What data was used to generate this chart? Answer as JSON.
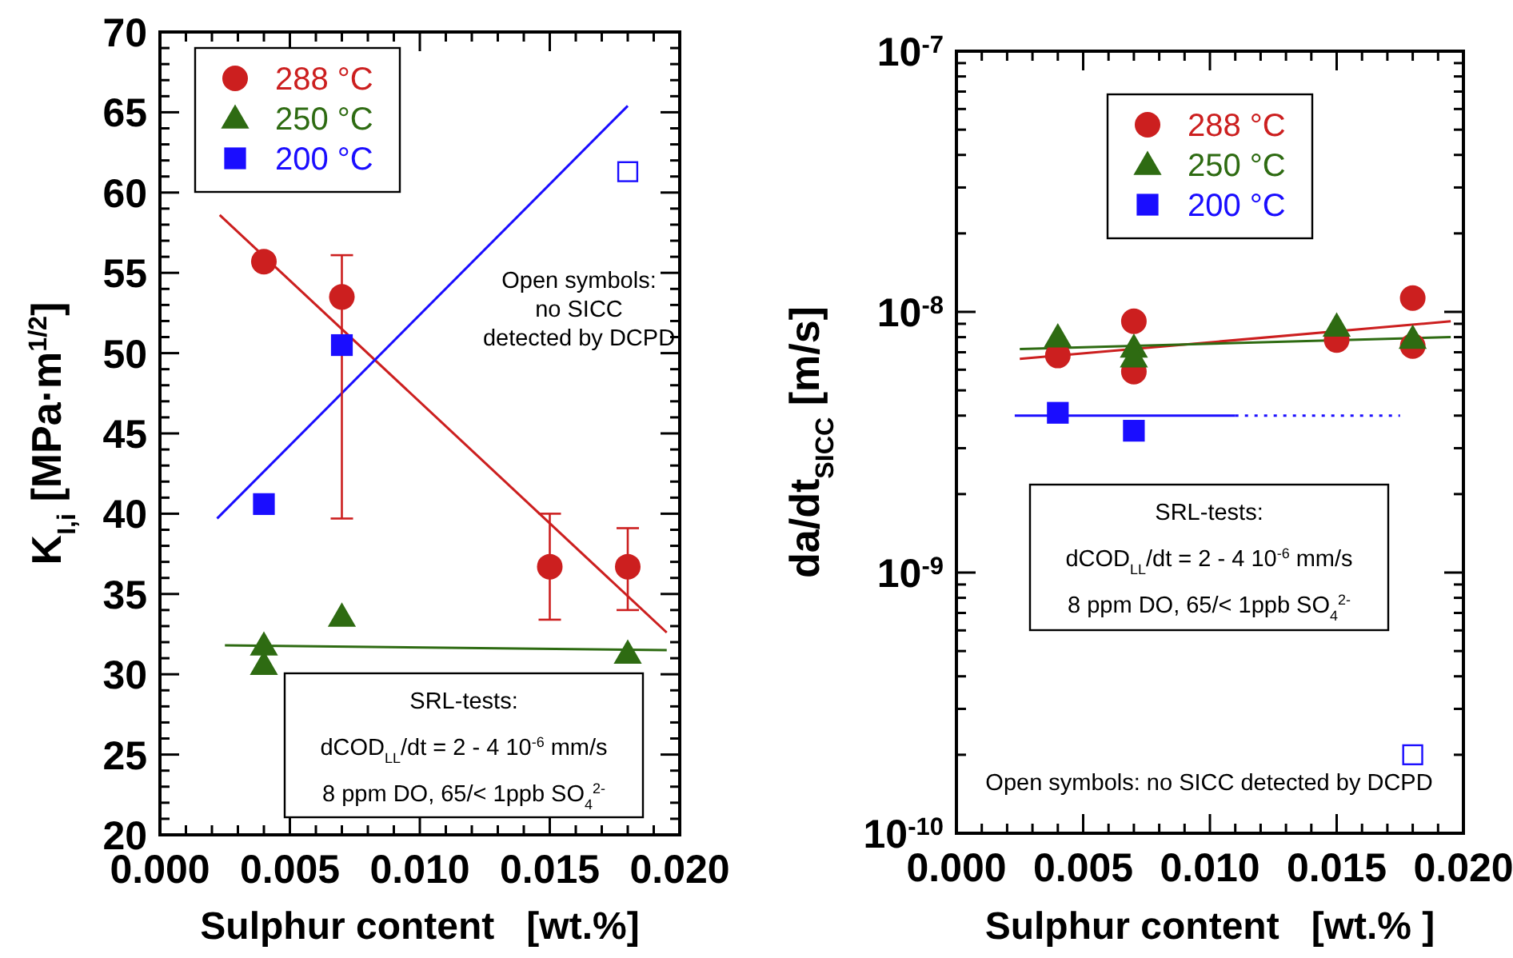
{
  "chart_data": [
    {
      "type": "scatter",
      "xlabel": "Sulphur content   [wt.%]",
      "ylabel": "K$_{I,i}$ [MPa·m$^{1/2}$]",
      "xlim": [
        0,
        0.02
      ],
      "ylim": [
        20,
        70
      ],
      "xticks": [
        {
          "value": 0,
          "label": "0.000"
        },
        {
          "value": 0.005,
          "label": "0.005"
        },
        {
          "value": 0.01,
          "label": "0.010"
        },
        {
          "value": 0.015,
          "label": "0.015"
        },
        {
          "value": 0.02,
          "label": "0.020"
        }
      ],
      "yticks": [
        20,
        25,
        30,
        35,
        40,
        45,
        50,
        55,
        60,
        65,
        70
      ],
      "legend": "top left",
      "grid": false,
      "annotations": [
        "Open symbols:\nno SICC\ndetected by DCPD",
        "SRL-tests:\ndCOD$_{LL}$/dt = 2 - 4 10$^{-6}$ mm/s\n8 ppm DO, 65/< 1ppb SO$_{4}$$^{2-}$"
      ],
      "series": [
        {
          "name": "288 °C",
          "marker": "circle",
          "color": "#cc1f1f",
          "x": [
            0.004,
            0.007,
            0.015,
            0.018
          ],
          "values": [
            55.7,
            53.5,
            36.7,
            36.7
          ],
          "errors": [
            null,
            [
              39.7,
              56.1
            ],
            [
              33.4,
              40.0
            ],
            [
              34.0,
              39.1
            ]
          ]
        },
        {
          "name": "250 °C",
          "marker": "triangle",
          "color": "#2e6b12",
          "x": [
            0.004,
            0.004,
            0.007,
            0.018
          ],
          "values": [
            31.8,
            30.6,
            33.6,
            31.3
          ]
        },
        {
          "name": "200 °C",
          "type": "scatter",
          "marker": "square",
          "color": "#1a0dff",
          "x": [
            0.004,
            0.007
          ],
          "values": [
            40.6,
            50.5
          ]
        },
        {
          "type": "scatter",
          "marker": "square",
          "color": "#1a0dff",
          "x": [
            0.018
          ],
          "values": [
            61.3
          ]
        },
        {
          "type": "line",
          "color": "#cc1f1f",
          "x": [
            0.0023,
            0.0195
          ],
          "values": [
            58.6,
            32.6
          ]
        },
        {
          "type": "line",
          "color": "#1a0dff",
          "x": [
            0.0022,
            0.018
          ],
          "values": [
            39.7,
            65.4
          ]
        },
        {
          "type": "line",
          "color": "#2e6b12",
          "x": [
            0.0025,
            0.0195
          ],
          "values": [
            31.8,
            31.5
          ]
        }
      ]
    },
    {
      "type": "scatter",
      "xlabel": "Sulphur content   [wt.% ]",
      "ylabel": "da/dt$_{SICC}$ [m/s]",
      "log": true,
      "xlim": [
        0,
        0.02
      ],
      "ylim": [
        1e-10,
        1e-07
      ],
      "xticks": [
        {
          "value": 0,
          "label": "0.000"
        },
        {
          "value": 0.005,
          "label": "0.005"
        },
        {
          "value": 0.01,
          "label": "0.010"
        },
        {
          "value": 0.015,
          "label": "0.015"
        },
        {
          "value": 0.02,
          "label": "0.020"
        }
      ],
      "yticks": [
        {
          "value": 1e-10,
          "label": "10$^{-10}$"
        },
        {
          "value": 1e-09,
          "label": "10$^{-9}$"
        },
        {
          "value": 1e-08,
          "label": "10$^{-8}$"
        },
        {
          "value": 1e-07,
          "label": "10$^{-7}$"
        }
      ],
      "legend": "top",
      "grid": false,
      "annotations": [
        "SRL-tests:\ndCOD$_{LL}$/dt = 2 - 4 10$^{-6}$ mm/s\n8 ppm DO, 65/< 1ppb SO$_{4}$$^{2-}$",
        "Open symbols: no SICC detected by DCPD"
      ],
      "series": [
        {
          "name": "288 °C",
          "marker": "circle",
          "color": "#cc1f1f",
          "x": [
            0.004,
            0.007,
            0.007,
            0.015,
            0.018,
            0.018
          ],
          "values": [
            6.8e-09,
            9.2e-09,
            5.9e-09,
            7.8e-09,
            1.13e-08,
            7.4e-09
          ]
        },
        {
          "name": "250 °C",
          "marker": "triangle",
          "color": "#2e6b12",
          "x": [
            0.004,
            0.007,
            0.007,
            0.015,
            0.018
          ],
          "values": [
            8e-09,
            7.3e-09,
            6.7e-09,
            8.8e-09,
            7.9e-09
          ]
        },
        {
          "name": "200 °C",
          "type": "scatter",
          "marker": "square",
          "color": "#1a0dff",
          "x": [
            0.004,
            0.007
          ],
          "values": [
            4.1e-09,
            3.5e-09
          ]
        },
        {
          "type": "scatter",
          "marker": "square",
          "color": "#1a0dff",
          "x": [
            0.018
          ],
          "values": [
            2e-10
          ]
        },
        {
          "type": "line",
          "color": "#cc1f1f",
          "x": [
            0.0025,
            0.0195
          ],
          "values": [
            6.6e-09,
            9.2e-09
          ]
        },
        {
          "type": "line",
          "color": "#2e6b12",
          "x": [
            0.0025,
            0.0195
          ],
          "values": [
            7.2e-09,
            8e-09
          ]
        },
        {
          "type": "line",
          "color": "#1a0dff",
          "x": [
            0.0023,
            0.011
          ],
          "values": [
            4e-09,
            4e-09
          ]
        },
        {
          "type": "line",
          "line_style": "dotted",
          "color": "#1a0dff",
          "x": [
            0.011,
            0.0175
          ],
          "values": [
            4e-09,
            4e-09
          ]
        }
      ]
    }
  ]
}
